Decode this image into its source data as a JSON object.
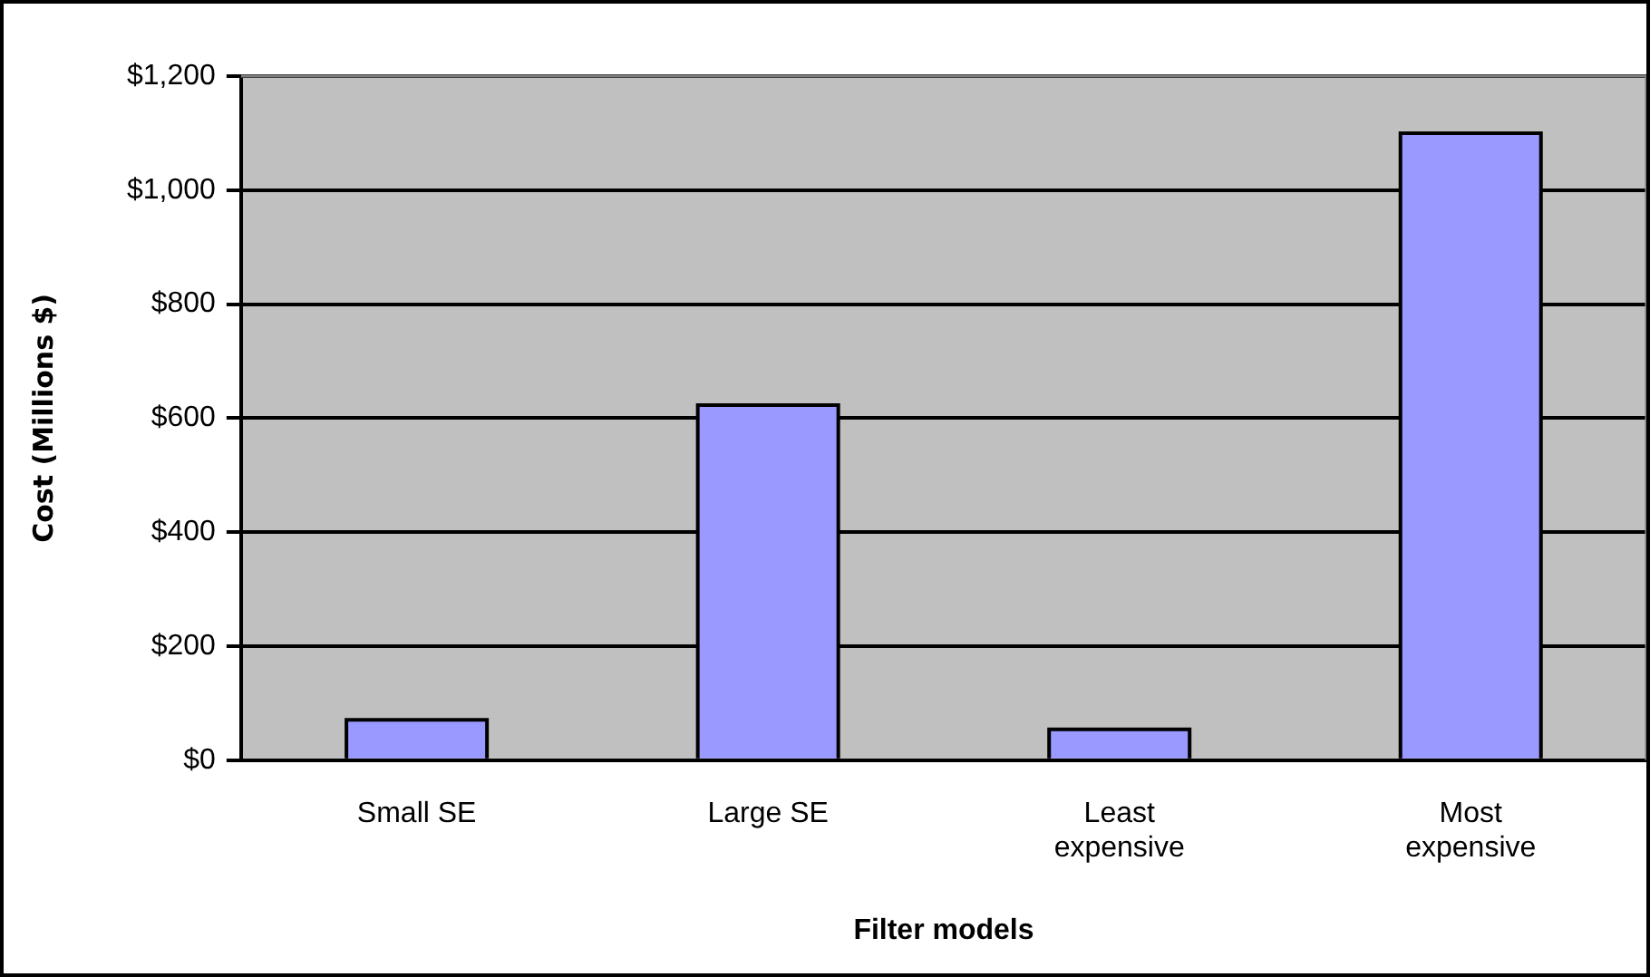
{
  "chart_data": {
    "type": "bar",
    "xlabel": "Filter models",
    "ylabel": "Cost (Millions $)",
    "categories": [
      "Small SE",
      "Large SE",
      "Least expensive",
      "Most expensive"
    ],
    "values": [
      71,
      623,
      54,
      1100
    ],
    "color": "#9999ff",
    "ylim": [
      0,
      1200
    ],
    "yticks": [
      {
        "value": 0,
        "label": "$0"
      },
      {
        "value": 200,
        "label": "$200"
      },
      {
        "value": 400,
        "label": "$400"
      },
      {
        "value": 600,
        "label": "$600"
      },
      {
        "value": 800,
        "label": "$800"
      },
      {
        "value": 1000,
        "label": "$1,000"
      },
      {
        "value": 1200,
        "label": "$1,200"
      }
    ],
    "grid": "y",
    "legend": false
  }
}
